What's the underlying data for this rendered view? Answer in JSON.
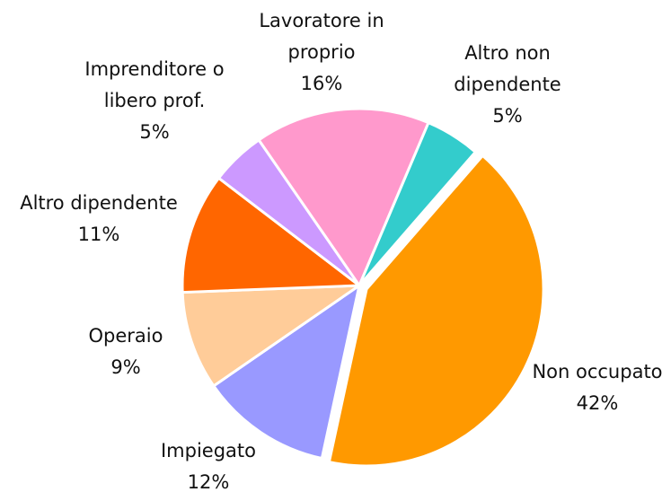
{
  "chart_data": {
    "type": "pie",
    "categories": [
      "Non occupato",
      "Impiegato",
      "Operaio",
      "Altro dipendente",
      "Imprenditore o libero prof.",
      "Lavoratore in proprio",
      "Altro non dipendente"
    ],
    "values": [
      42,
      12,
      9,
      11,
      5,
      16,
      5
    ],
    "value_labels": [
      "42%",
      "12%",
      "9%",
      "11%",
      "5%",
      "16%",
      "5%"
    ],
    "colors": [
      "#ff9900",
      "#9999ff",
      "#ffcc99",
      "#ff6600",
      "#cc99ff",
      "#ff99cc",
      "#33cccc"
    ]
  }
}
